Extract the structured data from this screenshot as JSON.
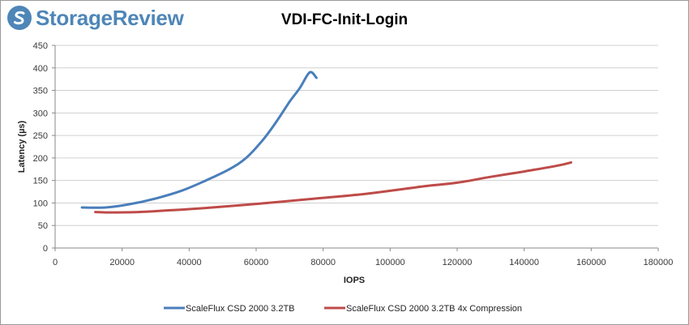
{
  "logo": {
    "text": "StorageReview"
  },
  "colors": {
    "brand": "#4e86b8",
    "series1": "#4a7ebb",
    "series2": "#be4b48",
    "grid": "#d0d0d0"
  },
  "chart_data": {
    "type": "line",
    "title": "VDI-FC-Init-Login",
    "xlabel": "IOPS",
    "ylabel": "Latency (µs)",
    "xlim": [
      0,
      180000
    ],
    "ylim": [
      0,
      450
    ],
    "xticks": [
      0,
      20000,
      40000,
      60000,
      80000,
      100000,
      120000,
      140000,
      160000,
      180000
    ],
    "yticks": [
      0,
      50,
      100,
      150,
      200,
      250,
      300,
      350,
      400,
      450
    ],
    "grid": "horizontal",
    "legend": "bottom",
    "series": [
      {
        "name": "ScaleFlux CSD 2000 3.2TB",
        "color": "#4a7ebb",
        "x": [
          8000,
          15000,
          22000,
          30000,
          38000,
          45000,
          52000,
          57000,
          62000,
          66000,
          70000,
          73000,
          76000,
          78000
        ],
        "y": [
          90,
          90,
          97,
          110,
          128,
          150,
          175,
          200,
          240,
          280,
          325,
          355,
          390,
          378
        ]
      },
      {
        "name": "ScaleFlux CSD 2000 3.2TB 4x Compression",
        "color": "#be4b48",
        "x": [
          12000,
          16000,
          25000,
          35000,
          45000,
          60000,
          75000,
          90000,
          100000,
          110000,
          120000,
          130000,
          140000,
          150000,
          154000
        ],
        "y": [
          80,
          79,
          80,
          84,
          89,
          98,
          108,
          118,
          127,
          137,
          145,
          158,
          170,
          183,
          190
        ]
      }
    ]
  }
}
